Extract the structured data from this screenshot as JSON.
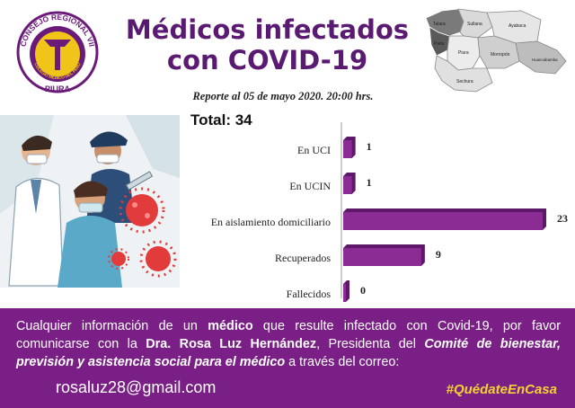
{
  "logo": {
    "top_text": "CONSEJO REGIONAL VII",
    "ring_text": "COLEGIO MÉDICO DEL PERÚ",
    "bottom_text": "PIURA",
    "colors": {
      "primary": "#6a1b7a",
      "gold": "#f0c419"
    }
  },
  "header": {
    "title_line1": "Médicos infectados",
    "title_line2": "con COVID-19",
    "report": "Reporte  al 05 de mayo 2020. 20:00 hrs.",
    "total": "Total: 34"
  },
  "map": {
    "regions": [
      "Talara",
      "Sullana",
      "Ayabaca",
      "Paita",
      "Piura",
      "Morropón",
      "Huancabamba",
      "Sechura"
    ]
  },
  "chart_data": {
    "type": "bar",
    "orientation": "horizontal",
    "categories": [
      "En UCI",
      "En UCIN",
      "En aislamiento domiciliario",
      "Recuperados",
      "Fallecidos"
    ],
    "values": [
      1,
      1,
      23,
      9,
      0
    ],
    "xlim": [
      0,
      23
    ],
    "grid": false,
    "color": "#8b2b94"
  },
  "footer": {
    "p1": "Cualquier información de un ",
    "p1_bold": "médico",
    "p2": " que resulte infectado con Covid-19,  por favor comunicarse con la ",
    "p2_bold": "Dra. Rosa Luz Hernández",
    "p3": ", Presidenta del ",
    "p3_italic": "Comité de bienestar, previsión y asistencia social para el médico",
    "p4": " a través del correo:",
    "email": "rosaluz28@gmail.com",
    "hashtag": "#QuédateEnCasa",
    "colors": {
      "background": "#7a1f86",
      "hashtag": "#f3d233"
    }
  }
}
